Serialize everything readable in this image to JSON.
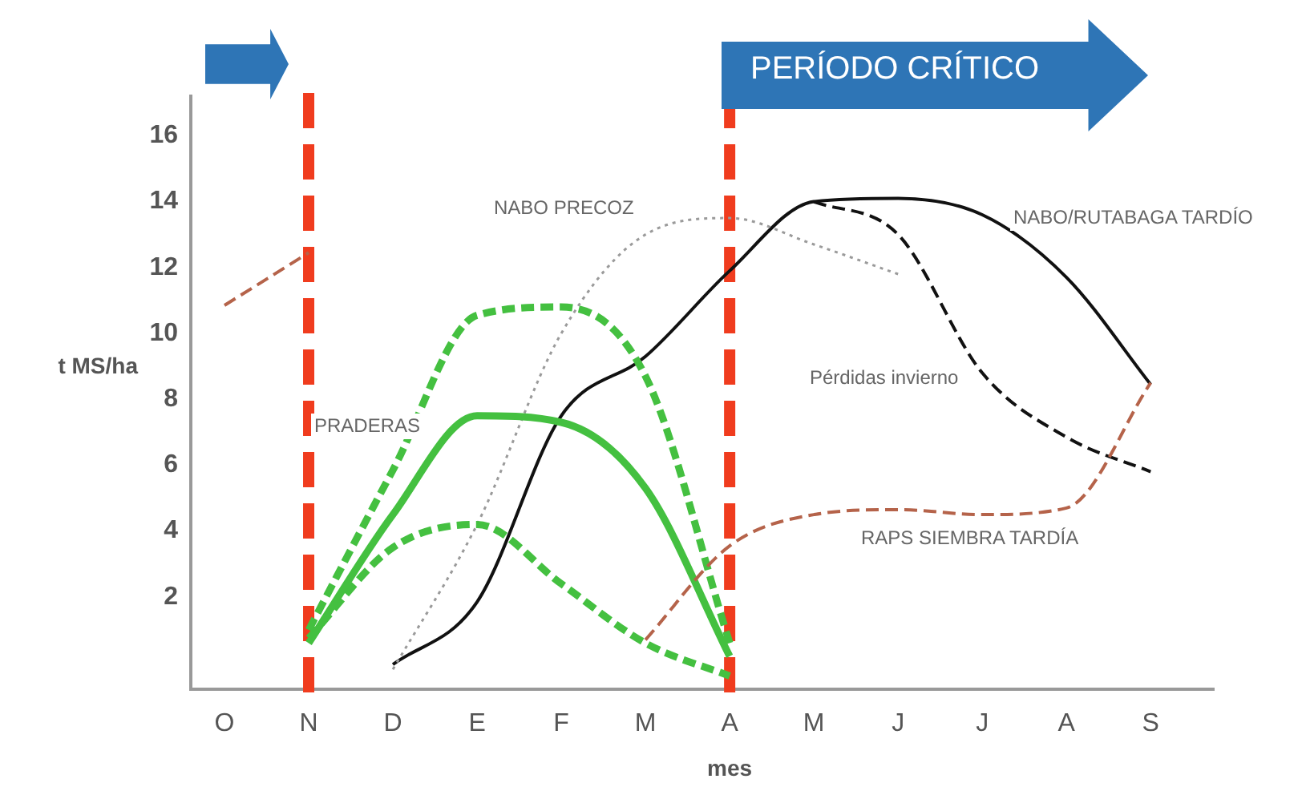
{
  "chart_data": {
    "type": "line",
    "xlabel": "mes",
    "ylabel": "t MS/ha",
    "annotations": [
      "PERÍODO CRÍTICO"
    ],
    "categories": [
      "O",
      "N",
      "D",
      "E",
      "F",
      "M",
      "A",
      "M",
      "J",
      "J",
      "A",
      "S"
    ],
    "ylim": [
      -0.8,
      17.2
    ],
    "yticks": [
      2,
      4,
      6,
      8,
      10,
      12,
      14,
      16
    ],
    "grid": false,
    "legend": false,
    "marker": "none",
    "ref_lines": [
      {
        "axis": "x",
        "value": "N",
        "color": "#f03c1e",
        "line_style": "dashed"
      },
      {
        "axis": "x",
        "value": "A",
        "color": "#f03c1e",
        "line_style": "dashed"
      }
    ],
    "series": [
      {
        "color": "#b5634a",
        "line_style": "dashed",
        "values": [
          10.85,
          12.45,
          null,
          null,
          null,
          null,
          null,
          null,
          null,
          null,
          null,
          null
        ]
      },
      {
        "name": "RAPS SIEMBRA TARDÍA",
        "color": "#b5634a",
        "line_style": "dashed",
        "values": [
          null,
          null,
          null,
          null,
          null,
          0.7,
          3.55,
          4.5,
          4.65,
          4.5,
          4.7,
          8.5
        ]
      },
      {
        "color": "#44c040",
        "line_style": "dashed",
        "values": [
          null,
          1.0,
          5.85,
          10.55,
          10.8,
          8.7,
          0.6,
          null,
          null,
          null,
          null,
          null
        ]
      },
      {
        "name": "PRADERAS",
        "color": "#44c040",
        "line_style": "solid",
        "values": [
          null,
          0.6,
          4.5,
          7.5,
          7.3,
          5.3,
          0.2,
          null,
          null,
          null,
          null,
          null
        ]
      },
      {
        "color": "#44c040",
        "line_style": "dashed",
        "values": [
          null,
          0.75,
          3.5,
          4.2,
          2.4,
          0.6,
          -0.4,
          null,
          null,
          null,
          null,
          null
        ]
      },
      {
        "name": "NABO PRECOZ",
        "color": "#9a9a9a",
        "line_style": "dotted",
        "values": [
          null,
          null,
          -0.2,
          4.2,
          10.0,
          13.0,
          13.5,
          12.7,
          11.8,
          null,
          null,
          null
        ]
      },
      {
        "name": "NABO/RUTABAGA TARDÍO",
        "color": "#111111",
        "line_style": "solid",
        "values": [
          null,
          null,
          -0.05,
          1.85,
          7.5,
          9.3,
          11.9,
          14.0,
          14.1,
          13.6,
          11.7,
          8.45
        ]
      },
      {
        "name": "Pérdidas invierno",
        "color": "#111111",
        "line_style": "dashed",
        "values": [
          null,
          null,
          null,
          null,
          null,
          null,
          null,
          14.0,
          13.0,
          8.8,
          6.85,
          5.8
        ]
      }
    ]
  }
}
